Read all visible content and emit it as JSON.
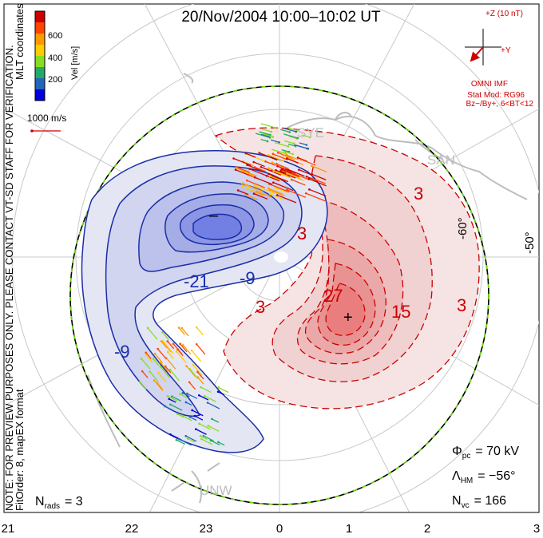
{
  "title": "20/Nov/2004  10:00–10:02  UT",
  "side_notes": {
    "line1": "NOTE: FOR PREVIEW PURPOSES ONLY. PLEASE CONTACT VT-SD STAFF FOR VERIFICATION.",
    "line2": "FitOrder: 8, mapEX format",
    "coords": "MLT coordinates"
  },
  "colorbar": {
    "label": "Vel [m/s]",
    "ticks": [
      "600",
      "400",
      "200"
    ],
    "colors": [
      "#cc0000",
      "#ff4400",
      "#ff9900",
      "#ffcc00",
      "#88dd22",
      "#22aa66",
      "#2266bb",
      "#0000dd"
    ]
  },
  "scale_vector": {
    "label": "1000 m/s"
  },
  "imf": {
    "z_label": "+Z (10 nT)",
    "y_label": "+Y",
    "omni": "OMNI IMF",
    "stat_mod": "Stat Mod: RG96",
    "condition": "Bz−/By+, 6<BT<12"
  },
  "stations": [
    "SYE",
    "SAN",
    "UNW"
  ],
  "stats": {
    "phi_label": "Φ",
    "phi_sub": "pc",
    "phi_value": "= 70 kV",
    "lambda_label": "Λ",
    "lambda_sub": "HM",
    "lambda_value": "= −56°",
    "nvc_label": "N",
    "nvc_sub": "vc",
    "nvc_value": "= 166",
    "nrads_label": "N",
    "nrads_sub": "rads",
    "nrads_value": "= 3"
  },
  "chart_data": {
    "type": "contour",
    "x_axis": {
      "label": "",
      "ticks": [
        "21",
        "22",
        "23",
        "0",
        "1",
        "2",
        "3"
      ]
    },
    "lat_labels": [
      "-60°",
      "-50°"
    ],
    "contour_labels": {
      "negative": [
        "-21",
        "-9",
        "-9"
      ],
      "positive": [
        "3",
        "3",
        "3",
        "27",
        "15",
        "3"
      ]
    },
    "min_marker": "–",
    "max_marker": "+",
    "heppner_maynard_boundary_lat": -56,
    "potential_cross_cap_kV": 70,
    "vector_count": 166,
    "radar_count": 3
  }
}
